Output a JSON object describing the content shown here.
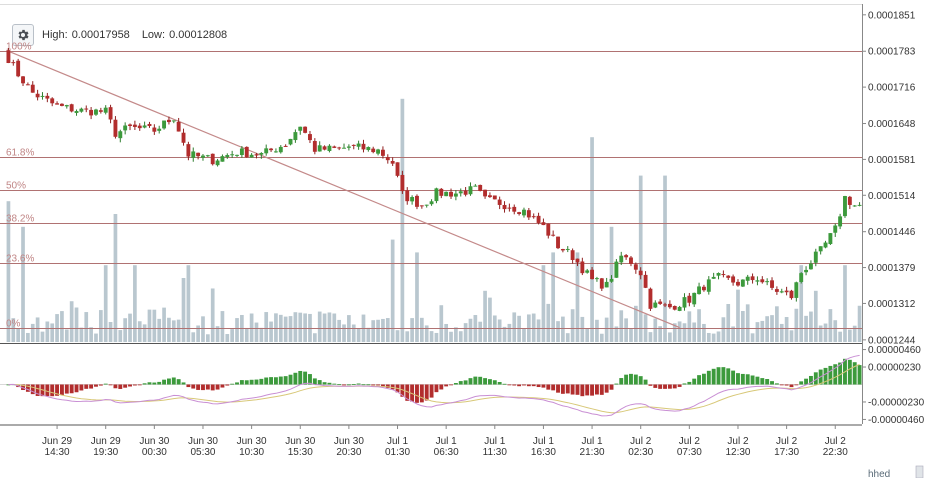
{
  "header": {
    "high_label": "High:",
    "high_value": "0.00017958",
    "low_label": "Low:",
    "low_value": "0.00012808"
  },
  "colors": {
    "up": "#3c9a3c",
    "down": "#b22d2d",
    "volume": "#b9c7cf",
    "fib_line": "#b07272",
    "trend_line": "#c48a8a",
    "macd_line": "#c98fd4",
    "signal_line": "#d8c878",
    "grid": "#888888"
  },
  "chart_data": [
    {
      "type": "candlestick",
      "price_axis": {
        "ticks": [
          "0.0001851",
          "0.0001783",
          "0.0001716",
          "0.0001648",
          "0.0001581",
          "0.0001514",
          "0.0001446",
          "0.0001379",
          "0.0001312",
          "0.0001244"
        ],
        "range": [
          0.000124,
          0.000186
        ]
      },
      "fib_levels": [
        {
          "label": "100%",
          "value": 0.0001783
        },
        {
          "label": "61.8%",
          "value": 0.0001585
        },
        {
          "label": "50%",
          "value": 0.0001524
        },
        {
          "label": "38.2%",
          "value": 0.0001463
        },
        {
          "label": "23.6%",
          "value": 0.0001388
        },
        {
          "label": "0%",
          "value": 0.0001267
        }
      ],
      "trend_line": {
        "from": [
          0,
          0.0001783
        ],
        "to": [
          138,
          0.0001267
        ]
      },
      "x_labels": [
        {
          "index": 10,
          "line1": "Jun 29",
          "line2": "14:30"
        },
        {
          "index": 20,
          "line1": "Jun 29",
          "line2": "19:30"
        },
        {
          "index": 30,
          "line1": "Jun 30",
          "line2": "00:30"
        },
        {
          "index": 40,
          "line1": "Jun 30",
          "line2": "05:30"
        },
        {
          "index": 50,
          "line1": "Jun 30",
          "line2": "10:30"
        },
        {
          "index": 60,
          "line1": "Jun 30",
          "line2": "15:30"
        },
        {
          "index": 70,
          "line1": "Jun 30",
          "line2": "20:30"
        },
        {
          "index": 80,
          "line1": "Jul 1",
          "line2": "01:30"
        },
        {
          "index": 90,
          "line1": "Jul 1",
          "line2": "06:30"
        },
        {
          "index": 100,
          "line1": "Jul 1",
          "line2": "11:30"
        },
        {
          "index": 110,
          "line1": "Jul 1",
          "line2": "16:30"
        },
        {
          "index": 120,
          "line1": "Jul 1",
          "line2": "21:30"
        },
        {
          "index": 130,
          "line1": "Jul 2",
          "line2": "02:30"
        },
        {
          "index": 140,
          "line1": "Jul 2",
          "line2": "07:30"
        },
        {
          "index": 150,
          "line1": "Jul 2",
          "line2": "12:30"
        },
        {
          "index": 160,
          "line1": "Jul 2",
          "line2": "17:30"
        },
        {
          "index": 170,
          "line1": "Jul 2",
          "line2": "22:30"
        }
      ],
      "anchors": [
        [
          0,
          0.000177
        ],
        [
          2,
          0.000174
        ],
        [
          5,
          0.0001705
        ],
        [
          10,
          0.000168
        ],
        [
          15,
          0.0001672
        ],
        [
          20,
          0.000167
        ],
        [
          22,
          0.000163
        ],
        [
          25,
          0.000164
        ],
        [
          30,
          0.0001635
        ],
        [
          34,
          0.000166
        ],
        [
          37,
          0.000159
        ],
        [
          42,
          0.000158
        ],
        [
          47,
          0.0001595
        ],
        [
          52,
          0.000159
        ],
        [
          57,
          0.000161
        ],
        [
          60,
          0.0001645
        ],
        [
          63,
          0.00016
        ],
        [
          68,
          0.00016
        ],
        [
          70,
          0.0001605
        ],
        [
          76,
          0.0001598
        ],
        [
          79,
          0.0001575
        ],
        [
          81,
          0.0001515
        ],
        [
          85,
          0.0001495
        ],
        [
          88,
          0.0001518
        ],
        [
          92,
          0.0001518
        ],
        [
          96,
          0.0001525
        ],
        [
          98,
          0.0001505
        ],
        [
          101,
          0.00015
        ],
        [
          106,
          0.0001485
        ],
        [
          110,
          0.0001455
        ],
        [
          113,
          0.000142
        ],
        [
          116,
          0.00014
        ],
        [
          120,
          0.0001355
        ],
        [
          123,
          0.0001345
        ],
        [
          126,
          0.00014
        ],
        [
          128,
          0.000139
        ],
        [
          130,
          0.000137
        ],
        [
          132,
          0.000131
        ],
        [
          136,
          0.0001305
        ],
        [
          140,
          0.000132
        ],
        [
          143,
          0.0001345
        ],
        [
          146,
          0.000136
        ],
        [
          150,
          0.000135
        ],
        [
          154,
          0.000136
        ],
        [
          157,
          0.000134
        ],
        [
          161,
          0.0001325
        ],
        [
          163,
          0.000137
        ],
        [
          167,
          0.000141
        ],
        [
          170,
          0.000145
        ],
        [
          172,
          0.000151
        ],
        [
          174,
          0.0001495
        ]
      ],
      "volume_spikes": [
        [
          0,
          0.55
        ],
        [
          3,
          0.45
        ],
        [
          20,
          0.3
        ],
        [
          22,
          0.5
        ],
        [
          26,
          0.3
        ],
        [
          36,
          0.25
        ],
        [
          37,
          0.3
        ],
        [
          79,
          0.4
        ],
        [
          81,
          0.95
        ],
        [
          84,
          0.35
        ],
        [
          98,
          0.2
        ],
        [
          110,
          0.3
        ],
        [
          112,
          0.35
        ],
        [
          117,
          0.35
        ],
        [
          120,
          0.8
        ],
        [
          124,
          0.45
        ],
        [
          130,
          0.65
        ],
        [
          135,
          0.65
        ],
        [
          163,
          0.3
        ],
        [
          166,
          0.2
        ],
        [
          172,
          0.3
        ]
      ]
    },
    {
      "type": "macd",
      "ticks": [
        "0.00000460",
        "0.00000230",
        "-0.00000230",
        "-0.00000460"
      ],
      "range": [
        -5.2e-06,
        5.2e-06
      ]
    }
  ],
  "footer": {
    "scroll_text": "hhed"
  }
}
